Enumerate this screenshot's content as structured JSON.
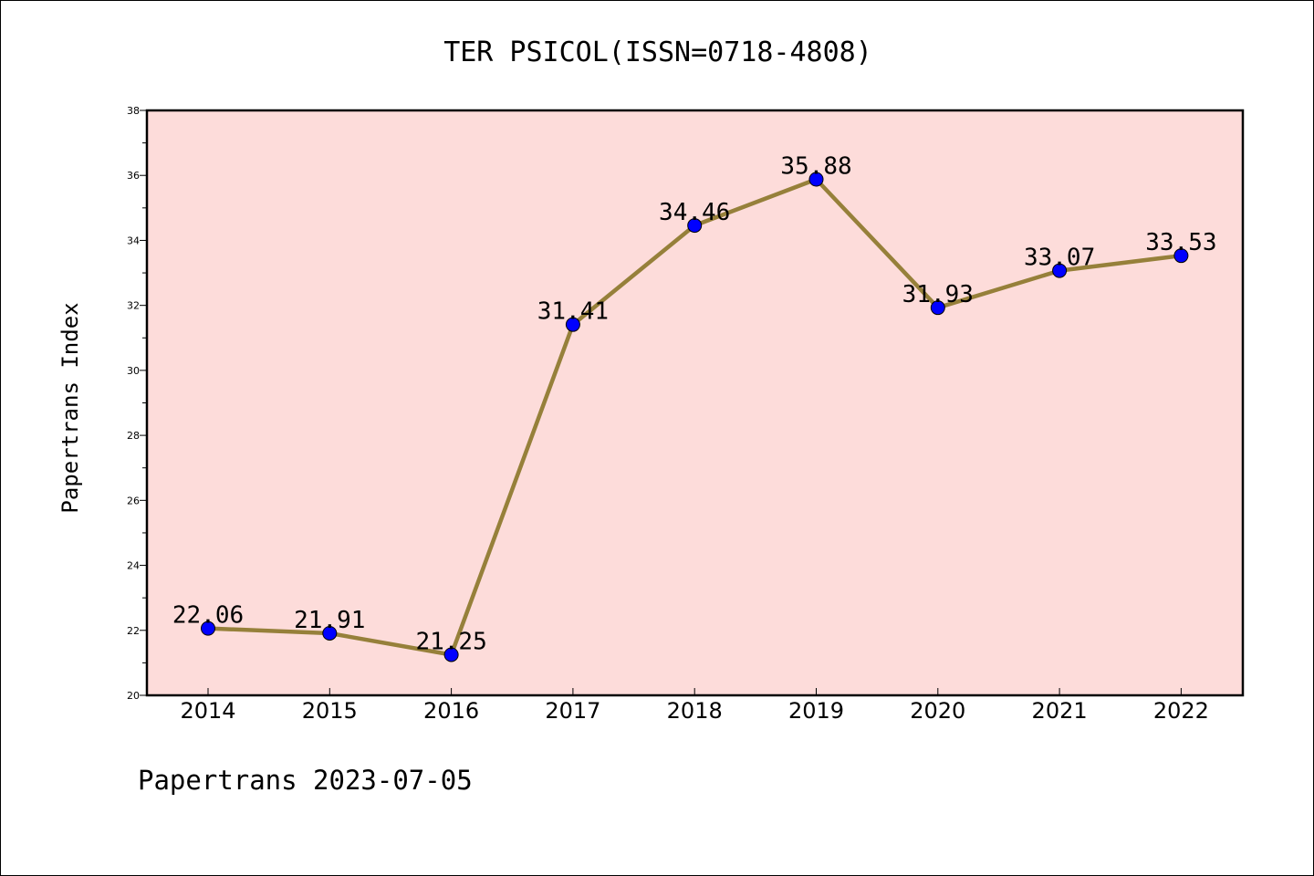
{
  "chart_data": {
    "type": "line",
    "title": "TER PSICOL(ISSN=0718-4808)",
    "ylabel": "Papertrans Index",
    "xlabel": "",
    "categories": [
      "2014",
      "2015",
      "2016",
      "2017",
      "2018",
      "2019",
      "2020",
      "2021",
      "2022"
    ],
    "series": [
      {
        "values": [
          22.06,
          21.91,
          21.25,
          31.41,
          34.46,
          35.88,
          31.93,
          33.07,
          33.53
        ],
        "data_labels": [
          "22.06",
          "21.91",
          "21.25",
          "31.41",
          "34.46",
          "35.88",
          "31.93",
          "33.07",
          "33.53"
        ]
      }
    ],
    "ylim": [
      20,
      38
    ],
    "yticks": [
      20,
      22,
      24,
      26,
      28,
      30,
      32,
      34,
      36,
      38
    ],
    "ytick_labels": [
      "20",
      "22",
      "24",
      "26",
      "28",
      "30",
      "32",
      "34",
      "36",
      "38"
    ],
    "grid": false,
    "colors": {
      "plot_background": "#fddcda",
      "line": "#96803a",
      "marker": "#0000ff"
    }
  },
  "footer": "Papertrans 2023-07-05"
}
